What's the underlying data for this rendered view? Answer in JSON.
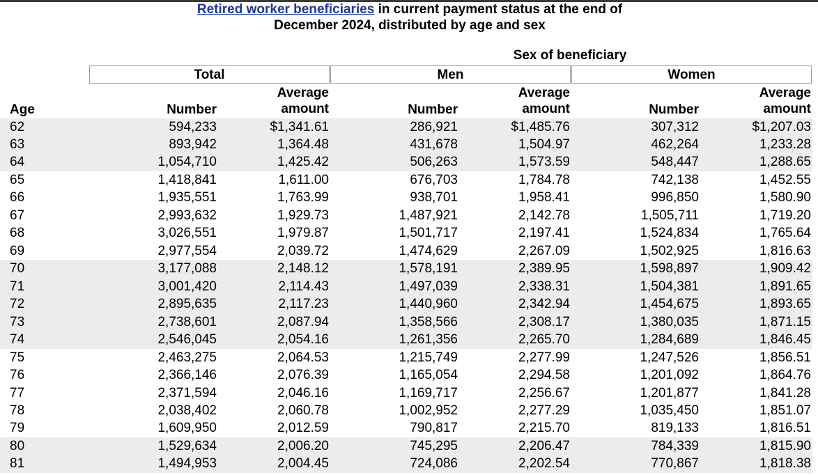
{
  "title": {
    "link": "Retired worker beneficiaries",
    "text": "in current payment status at the end of December 2024, distributed by age and sex"
  },
  "spanner": "Sex of beneficiary",
  "groups": [
    "Total",
    "Men",
    "Women"
  ],
  "columns": [
    "Age",
    "Number",
    "Average amount",
    "Number",
    "Average amount",
    "Number",
    "Average amount"
  ],
  "rows": [
    [
      "62",
      "594,233",
      "$1,341.61",
      "286,921",
      "$1,485.76",
      "307,312",
      "$1,207.03"
    ],
    [
      "63",
      "893,942",
      "1,364.48",
      "431,678",
      "1,504.97",
      "462,264",
      "1,233.28"
    ],
    [
      "64",
      "1,054,710",
      "1,425.42",
      "506,263",
      "1,573.59",
      "548,447",
      "1,288.65"
    ],
    [
      "65",
      "1,418,841",
      "1,611.00",
      "676,703",
      "1,784.78",
      "742,138",
      "1,452.55"
    ],
    [
      "66",
      "1,935,551",
      "1,763.99",
      "938,701",
      "1,958.41",
      "996,850",
      "1,580.90"
    ],
    [
      "67",
      "2,993,632",
      "1,929.73",
      "1,487,921",
      "2,142.78",
      "1,505,711",
      "1,719.20"
    ],
    [
      "68",
      "3,026,551",
      "1,979.87",
      "1,501,717",
      "2,197.41",
      "1,524,834",
      "1,765.64"
    ],
    [
      "69",
      "2,977,554",
      "2,039.72",
      "1,474,629",
      "2,267.09",
      "1,502,925",
      "1,816.63"
    ],
    [
      "70",
      "3,177,088",
      "2,148.12",
      "1,578,191",
      "2,389.95",
      "1,598,897",
      "1,909.42"
    ],
    [
      "71",
      "3,001,420",
      "2,114.43",
      "1,497,039",
      "2,338.31",
      "1,504,381",
      "1,891.65"
    ],
    [
      "72",
      "2,895,635",
      "2,117.23",
      "1,440,960",
      "2,342.94",
      "1,454,675",
      "1,893.65"
    ],
    [
      "73",
      "2,738,601",
      "2,087.94",
      "1,358,566",
      "2,308.17",
      "1,380,035",
      "1,871.15"
    ],
    [
      "74",
      "2,546,045",
      "2,054.16",
      "1,261,356",
      "2,265.70",
      "1,284,689",
      "1,846.45"
    ],
    [
      "75",
      "2,463,275",
      "2,064.53",
      "1,215,749",
      "2,277.99",
      "1,247,526",
      "1,856.51"
    ],
    [
      "76",
      "2,366,146",
      "2,076.39",
      "1,165,054",
      "2,294.58",
      "1,201,092",
      "1,864.76"
    ],
    [
      "77",
      "2,371,594",
      "2,046.16",
      "1,169,717",
      "2,256.67",
      "1,201,877",
      "1,841.28"
    ],
    [
      "78",
      "2,038,402",
      "2,060.78",
      "1,002,952",
      "2,277.29",
      "1,035,450",
      "1,851.07"
    ],
    [
      "79",
      "1,609,950",
      "2,012.59",
      "790,817",
      "2,215.70",
      "819,133",
      "1,816.51"
    ],
    [
      "80",
      "1,529,634",
      "2,006.20",
      "745,295",
      "2,206.47",
      "784,339",
      "1,815.90"
    ],
    [
      "81",
      "1,494,953",
      "2,004.45",
      "724,086",
      "2,202.54",
      "770,867",
      "1,818.38"
    ]
  ]
}
